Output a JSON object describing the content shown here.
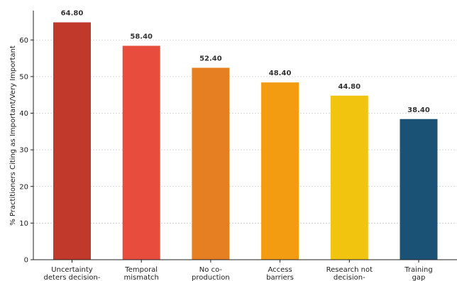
{
  "chart_data": {
    "type": "bar",
    "categories": [
      [
        "Uncertainty",
        "deters decision-"
      ],
      [
        "Temporal",
        "mismatch"
      ],
      [
        "No co-",
        "production"
      ],
      [
        "Access",
        "barriers"
      ],
      [
        "Research not",
        "decision-"
      ],
      [
        "Training",
        "gap"
      ]
    ],
    "values": [
      64.8,
      58.4,
      52.4,
      48.4,
      44.8,
      38.4
    ],
    "data_labels": [
      "64.80",
      "58.40",
      "52.40",
      "48.40",
      "44.80",
      "38.40"
    ],
    "colors": [
      "#c0392b",
      "#e74c3c",
      "#e67e22",
      "#f39c12",
      "#f1c40f",
      "#1a5276"
    ],
    "ylabel": "% Practitioners Citing as Important/Very Important",
    "xlabel": "",
    "ylim": [
      0,
      68
    ],
    "yticks": [
      0,
      10,
      20,
      30,
      40,
      50,
      60
    ],
    "grid": "horizontal-dotted"
  }
}
